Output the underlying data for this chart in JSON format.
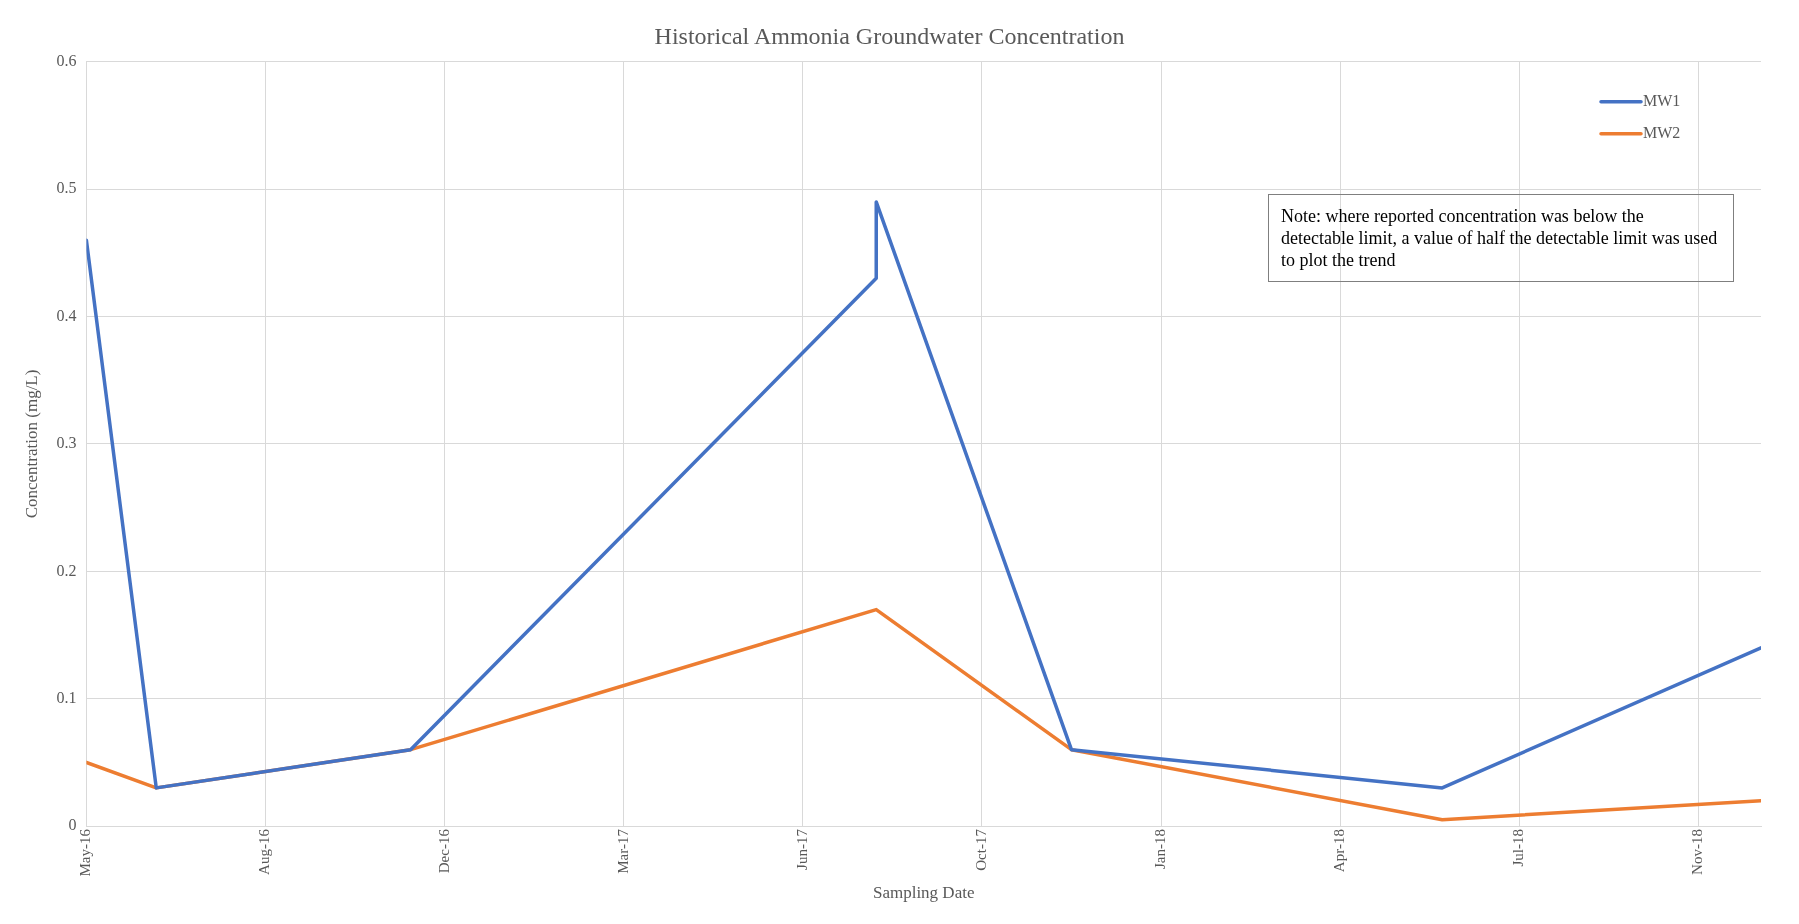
{
  "chart_data": {
    "type": "line",
    "title": "Historical Ammonia Groundwater Concentration",
    "xlabel": "Sampling Date",
    "ylabel": "Concentration (mg/L)",
    "annotations": [
      "Note: where reported concentration was below the detectable limit, a value of half the detectable limit was used to plot the trend"
    ],
    "series": [
      {
        "name": "MW1",
        "color": "#4472c4",
        "x": [
          "2016-05-20",
          "2016-06-28",
          "2016-11-17",
          "2017-08-04",
          "2017-08-04",
          "2017-11-21",
          "2018-06-16",
          "2018-12-11"
        ],
        "values": [
          0.46,
          0.03,
          0.06,
          0.43,
          0.49,
          0.06,
          0.03,
          0.14
        ]
      },
      {
        "name": "MW2",
        "color": "#ed7d31",
        "x": [
          "2016-05-20",
          "2016-06-28",
          "2016-11-17",
          "2017-08-04",
          "2017-11-21",
          "2018-06-16",
          "2018-12-11"
        ],
        "values": [
          0.05,
          0.03,
          0.06,
          0.17,
          0.06,
          0.005,
          0.02
        ]
      }
    ],
    "xlim": [
      "2016-05-20",
      "2018-12-11"
    ],
    "xticks": [
      {
        "value": "2016-05-20",
        "label": "May-16"
      },
      {
        "value": "2016-08-28",
        "label": "Aug-16"
      },
      {
        "value": "2016-12-06",
        "label": "Dec-16"
      },
      {
        "value": "2017-03-16",
        "label": "Mar-17"
      },
      {
        "value": "2017-06-24",
        "label": "Jun-17"
      },
      {
        "value": "2017-10-02",
        "label": "Oct-17"
      },
      {
        "value": "2018-01-10",
        "label": "Jan-18"
      },
      {
        "value": "2018-04-20",
        "label": "Apr-18"
      },
      {
        "value": "2018-07-29",
        "label": "Jul-18"
      },
      {
        "value": "2018-11-06",
        "label": "Nov-18"
      }
    ],
    "ylim": [
      0,
      0.6
    ],
    "yticks": [
      0,
      0.1,
      0.2,
      0.3,
      0.4,
      0.5,
      0.6
    ],
    "grid": true,
    "legend": "top right",
    "marker": "none",
    "line_style": "solid"
  }
}
